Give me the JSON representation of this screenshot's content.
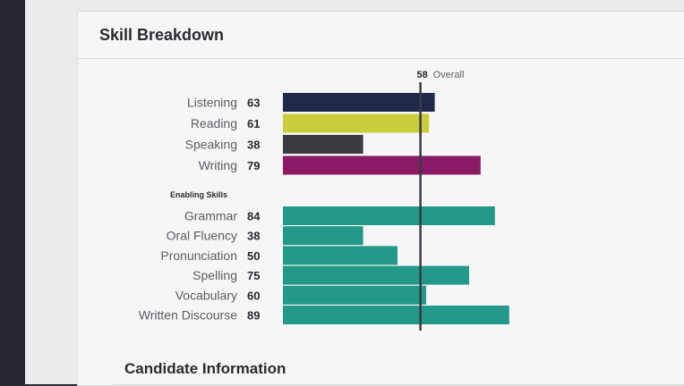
{
  "card": {
    "title": "Skill Breakdown"
  },
  "next_section": {
    "title": "Candidate Information"
  },
  "chart_data": {
    "type": "bar",
    "orientation": "horizontal",
    "title": "Skill Breakdown",
    "xlim": [
      10,
      90
    ],
    "overall": {
      "value": 58,
      "label": "Overall"
    },
    "groups": [
      {
        "name": "",
        "items": [
          {
            "label": "Listening",
            "value": 63,
            "color": "#1f2a4a"
          },
          {
            "label": "Reading",
            "value": 61,
            "color": "#c8ce3c"
          },
          {
            "label": "Speaking",
            "value": 38,
            "color": "#3a3a40"
          },
          {
            "label": "Writing",
            "value": 79,
            "color": "#8a1a66"
          }
        ]
      },
      {
        "name": "Enabling Skills",
        "items": [
          {
            "label": "Grammar",
            "value": 84,
            "color": "#23998a"
          },
          {
            "label": "Oral Fluency",
            "value": 38,
            "color": "#23998a"
          },
          {
            "label": "Pronunciation",
            "value": 50,
            "color": "#23998a"
          },
          {
            "label": "Spelling",
            "value": 75,
            "color": "#23998a"
          },
          {
            "label": "Vocabulary",
            "value": 60,
            "color": "#23998a"
          },
          {
            "label": "Written Discourse",
            "value": 89,
            "color": "#23998a"
          }
        ]
      }
    ]
  }
}
